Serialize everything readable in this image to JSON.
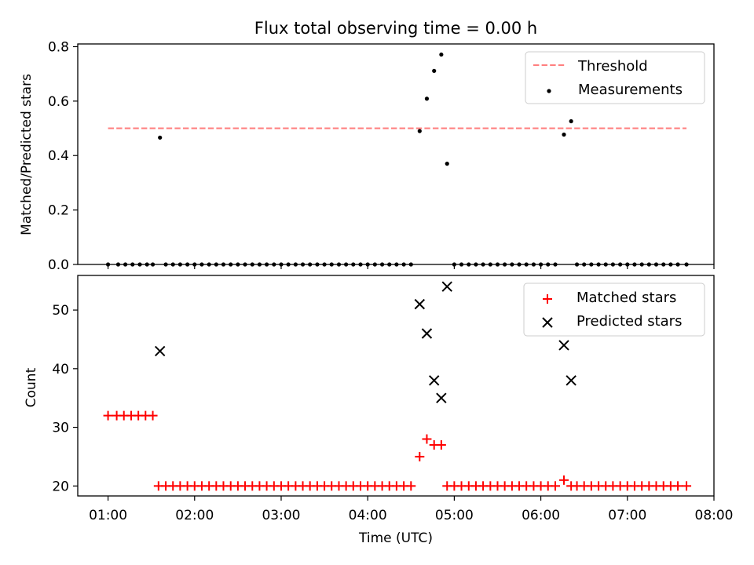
{
  "chart_data": [
    {
      "panel": "top",
      "type": "scatter",
      "title": "Flux total observing time = 0.00 h",
      "ylabel": "Matched/Predicted stars",
      "xlabel": "",
      "ylim": [
        0,
        0.81
      ],
      "xlim_hours": [
        0.65,
        8.0
      ],
      "yticks": [
        "0.0",
        "0.2",
        "0.4",
        "0.6",
        "0.8"
      ],
      "legend": {
        "position": "top-right",
        "entries": [
          "Threshold",
          "Measurements"
        ]
      },
      "threshold": {
        "name": "Threshold",
        "value": 0.5,
        "x_start": 1.0,
        "x_end": 7.683,
        "color": "#ff7f7f",
        "style": "dashed"
      },
      "series": [
        {
          "name": "Measurements",
          "color": "#000000",
          "marker": "dot",
          "points": [
            [
              1.0,
              0
            ],
            [
              1.117,
              0
            ],
            [
              1.2,
              0
            ],
            [
              1.283,
              0
            ],
            [
              1.367,
              0
            ],
            [
              1.45,
              0
            ],
            [
              1.517,
              0
            ],
            [
              1.6,
              0.466
            ],
            [
              1.667,
              0
            ],
            [
              1.75,
              0
            ],
            [
              1.833,
              0
            ],
            [
              1.917,
              0
            ],
            [
              2.0,
              0
            ],
            [
              2.083,
              0
            ],
            [
              2.167,
              0
            ],
            [
              2.25,
              0
            ],
            [
              2.333,
              0
            ],
            [
              2.417,
              0
            ],
            [
              2.5,
              0
            ],
            [
              2.583,
              0
            ],
            [
              2.667,
              0
            ],
            [
              2.75,
              0
            ],
            [
              2.833,
              0
            ],
            [
              2.917,
              0
            ],
            [
              3.0,
              0
            ],
            [
              3.083,
              0
            ],
            [
              3.167,
              0
            ],
            [
              3.25,
              0
            ],
            [
              3.333,
              0
            ],
            [
              3.417,
              0
            ],
            [
              3.5,
              0
            ],
            [
              3.583,
              0
            ],
            [
              3.667,
              0
            ],
            [
              3.75,
              0
            ],
            [
              3.833,
              0
            ],
            [
              3.917,
              0
            ],
            [
              4.0,
              0
            ],
            [
              4.083,
              0
            ],
            [
              4.167,
              0
            ],
            [
              4.25,
              0
            ],
            [
              4.333,
              0
            ],
            [
              4.417,
              0
            ],
            [
              4.5,
              0
            ],
            [
              4.6,
              0.49
            ],
            [
              4.683,
              0.609
            ],
            [
              4.767,
              0.711
            ],
            [
              4.85,
              0.771
            ],
            [
              4.917,
              0.37
            ],
            [
              5.0,
              0
            ],
            [
              5.083,
              0
            ],
            [
              5.167,
              0
            ],
            [
              5.25,
              0
            ],
            [
              5.333,
              0
            ],
            [
              5.417,
              0
            ],
            [
              5.5,
              0
            ],
            [
              5.583,
              0
            ],
            [
              5.667,
              0
            ],
            [
              5.75,
              0
            ],
            [
              5.833,
              0
            ],
            [
              5.917,
              0
            ],
            [
              6.0,
              0
            ],
            [
              6.083,
              0
            ],
            [
              6.167,
              0
            ],
            [
              6.267,
              0.477
            ],
            [
              6.35,
              0.526
            ],
            [
              6.417,
              0
            ],
            [
              6.5,
              0
            ],
            [
              6.583,
              0
            ],
            [
              6.667,
              0
            ],
            [
              6.75,
              0
            ],
            [
              6.833,
              0
            ],
            [
              6.917,
              0
            ],
            [
              7.0,
              0
            ],
            [
              7.083,
              0
            ],
            [
              7.167,
              0
            ],
            [
              7.25,
              0
            ],
            [
              7.333,
              0
            ],
            [
              7.417,
              0
            ],
            [
              7.5,
              0
            ],
            [
              7.583,
              0
            ],
            [
              7.683,
              0
            ]
          ]
        }
      ]
    },
    {
      "panel": "bottom",
      "type": "scatter",
      "title": "",
      "ylabel": "Count",
      "xlabel": "Time (UTC)",
      "ylim": [
        18.3,
        55.9
      ],
      "xlim_hours": [
        0.65,
        8.0
      ],
      "yticks": [
        "20",
        "30",
        "40",
        "50"
      ],
      "xticks": [
        "01:00",
        "02:00",
        "03:00",
        "04:00",
        "05:00",
        "06:00",
        "07:00",
        "08:00"
      ],
      "legend": {
        "position": "top-right",
        "entries": [
          "Matched stars",
          "Predicted stars"
        ]
      },
      "series": [
        {
          "name": "Matched stars",
          "color": "#ff0000",
          "marker": "plus",
          "points": [
            [
              1.0,
              32
            ],
            [
              1.1,
              32
            ],
            [
              1.183,
              32
            ],
            [
              1.267,
              32
            ],
            [
              1.35,
              32
            ],
            [
              1.433,
              32
            ],
            [
              1.517,
              32
            ],
            [
              1.583,
              20
            ],
            [
              1.667,
              20
            ],
            [
              1.75,
              20
            ],
            [
              1.833,
              20
            ],
            [
              1.917,
              20
            ],
            [
              2.0,
              20
            ],
            [
              2.083,
              20
            ],
            [
              2.167,
              20
            ],
            [
              2.25,
              20
            ],
            [
              2.333,
              20
            ],
            [
              2.417,
              20
            ],
            [
              2.5,
              20
            ],
            [
              2.583,
              20
            ],
            [
              2.667,
              20
            ],
            [
              2.75,
              20
            ],
            [
              2.833,
              20
            ],
            [
              2.917,
              20
            ],
            [
              3.0,
              20
            ],
            [
              3.083,
              20
            ],
            [
              3.167,
              20
            ],
            [
              3.25,
              20
            ],
            [
              3.333,
              20
            ],
            [
              3.417,
              20
            ],
            [
              3.5,
              20
            ],
            [
              3.583,
              20
            ],
            [
              3.667,
              20
            ],
            [
              3.75,
              20
            ],
            [
              3.833,
              20
            ],
            [
              3.917,
              20
            ],
            [
              4.0,
              20
            ],
            [
              4.083,
              20
            ],
            [
              4.167,
              20
            ],
            [
              4.25,
              20
            ],
            [
              4.333,
              20
            ],
            [
              4.417,
              20
            ],
            [
              4.5,
              20
            ],
            [
              4.6,
              25
            ],
            [
              4.683,
              28
            ],
            [
              4.767,
              27
            ],
            [
              4.85,
              27
            ],
            [
              4.917,
              20
            ],
            [
              5.0,
              20
            ],
            [
              5.083,
              20
            ],
            [
              5.167,
              20
            ],
            [
              5.25,
              20
            ],
            [
              5.333,
              20
            ],
            [
              5.417,
              20
            ],
            [
              5.5,
              20
            ],
            [
              5.583,
              20
            ],
            [
              5.667,
              20
            ],
            [
              5.75,
              20
            ],
            [
              5.833,
              20
            ],
            [
              5.917,
              20
            ],
            [
              6.0,
              20
            ],
            [
              6.083,
              20
            ],
            [
              6.167,
              20
            ],
            [
              6.267,
              21
            ],
            [
              6.35,
              20
            ],
            [
              6.417,
              20
            ],
            [
              6.5,
              20
            ],
            [
              6.583,
              20
            ],
            [
              6.667,
              20
            ],
            [
              6.75,
              20
            ],
            [
              6.833,
              20
            ],
            [
              6.917,
              20
            ],
            [
              7.0,
              20
            ],
            [
              7.083,
              20
            ],
            [
              7.167,
              20
            ],
            [
              7.25,
              20
            ],
            [
              7.333,
              20
            ],
            [
              7.417,
              20
            ],
            [
              7.5,
              20
            ],
            [
              7.583,
              20
            ],
            [
              7.683,
              20
            ]
          ]
        },
        {
          "name": "Predicted stars",
          "color": "#000000",
          "marker": "x",
          "points": [
            [
              1.6,
              43
            ],
            [
              4.6,
              51
            ],
            [
              4.683,
              46
            ],
            [
              4.767,
              38
            ],
            [
              4.85,
              35
            ],
            [
              4.917,
              54
            ],
            [
              6.267,
              44
            ],
            [
              6.35,
              38
            ]
          ]
        }
      ]
    }
  ]
}
